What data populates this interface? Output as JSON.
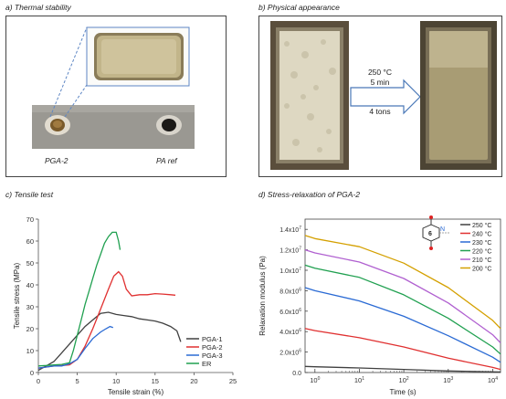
{
  "panels": {
    "a": {
      "title": "a) Thermal stability",
      "label_left": "PGA-2",
      "label_right": "PA ref"
    },
    "b": {
      "title": "b) Physical appearance",
      "temp": "250 °C",
      "time": "5 min",
      "pressure": "4 tons"
    },
    "c": {
      "title": "c) Tensile test"
    },
    "d": {
      "title": "d) Stress-relaxation of PGA-2",
      "molecule_ring": "6",
      "molecule_n": "N"
    }
  },
  "chart_data": [
    {
      "type": "line",
      "xlabel": "Tensile strain (%)",
      "ylabel": "Tensile stress (MPa)",
      "xlim": [
        0,
        25
      ],
      "ylim": [
        0,
        70
      ],
      "xticks": [
        "0",
        "5",
        "10",
        "15",
        "20",
        "25"
      ],
      "yticks": [
        "0",
        "10",
        "20",
        "30",
        "40",
        "50",
        "60",
        "70"
      ],
      "legend_position": "bottom-right",
      "series": [
        {
          "name": "PGA-1",
          "color": "#404040",
          "x": [
            0,
            1,
            2,
            3,
            4,
            5,
            6,
            7,
            8,
            9,
            10,
            11,
            12,
            13,
            14,
            15,
            16,
            17,
            17.8,
            18.3
          ],
          "y": [
            1,
            3,
            5,
            9,
            13,
            17,
            21,
            24,
            27,
            27.5,
            26.5,
            26,
            25.5,
            24.5,
            24,
            23.5,
            22.5,
            21,
            19,
            14
          ]
        },
        {
          "name": "PGA-2",
          "color": "#e03030",
          "x": [
            0,
            1,
            2,
            3,
            4,
            5,
            6,
            7,
            8,
            9,
            9.7,
            10.3,
            10.8,
            11.3,
            12,
            13,
            14,
            15,
            16,
            17,
            17.6
          ],
          "y": [
            2,
            2.5,
            3,
            3.2,
            3.5,
            6,
            12,
            20,
            29,
            38,
            44,
            46,
            44,
            38,
            35,
            35.5,
            35.5,
            36,
            35.8,
            35.5,
            35.3
          ]
        },
        {
          "name": "PGA-3",
          "color": "#2a6ad4",
          "x": [
            0,
            1,
            2,
            3,
            4,
            5,
            6,
            7,
            8,
            8.7,
            9.2,
            9.6
          ],
          "y": [
            2,
            2.5,
            3,
            3,
            4,
            6,
            11,
            15.5,
            18.5,
            20,
            21,
            20.5
          ]
        },
        {
          "name": "ER",
          "color": "#20a050",
          "x": [
            0,
            1,
            2,
            3,
            4,
            4.5,
            5,
            5.5,
            6,
            6.5,
            7,
            7.5,
            8,
            8.5,
            9,
            9.5,
            10,
            10.3,
            10.5
          ],
          "y": [
            3,
            3.2,
            3.5,
            3.7,
            4.5,
            10,
            17,
            24,
            31,
            37,
            43,
            49,
            54,
            59,
            62,
            64,
            64,
            60,
            56
          ]
        }
      ]
    },
    {
      "type": "line",
      "xlabel": "Time (s)",
      "ylabel": "Relaxation modulus (Pa)",
      "xscale": "log",
      "xlim": [
        0.6,
        15000
      ],
      "ylim": [
        0,
        15000000
      ],
      "xticks": [
        {
          "value": 1,
          "base": "10",
          "exp": "0"
        },
        {
          "value": 10,
          "base": "10",
          "exp": "1"
        },
        {
          "value": 100,
          "base": "10",
          "exp": "2"
        },
        {
          "value": 1000,
          "base": "10",
          "exp": "3"
        },
        {
          "value": 10000,
          "base": "10",
          "exp": "4"
        }
      ],
      "yticks": [
        {
          "value": 0,
          "mant": "0.0",
          "exp": ""
        },
        {
          "value": 2000000,
          "mant": "2.0x10",
          "exp": "6"
        },
        {
          "value": 4000000,
          "mant": "4.0x10",
          "exp": "6"
        },
        {
          "value": 6000000,
          "mant": "6.0x10",
          "exp": "6"
        },
        {
          "value": 8000000,
          "mant": "8.0x10",
          "exp": "6"
        },
        {
          "value": 10000000,
          "mant": "1.0x10",
          "exp": "7"
        },
        {
          "value": 12000000,
          "mant": "1.2x10",
          "exp": "7"
        },
        {
          "value": 14000000,
          "mant": "1.4x10",
          "exp": "7"
        }
      ],
      "legend_position": "top-right",
      "series": [
        {
          "name": "250 °C",
          "color": "#404040",
          "x": [
            0.6,
            1,
            10,
            100,
            1000,
            10000,
            15000
          ],
          "y": [
            600000,
            560000,
            450000,
            300000,
            150000,
            60000,
            50000
          ]
        },
        {
          "name": "240 °C",
          "color": "#e03030",
          "x": [
            0.6,
            1,
            10,
            100,
            1000,
            10000,
            15000
          ],
          "y": [
            4300000,
            4100000,
            3400000,
            2500000,
            1400000,
            500000,
            300000
          ]
        },
        {
          "name": "230 °C",
          "color": "#2a6ad4",
          "x": [
            0.6,
            1,
            10,
            100,
            1000,
            10000,
            15000
          ],
          "y": [
            8300000,
            8000000,
            7000000,
            5500000,
            3600000,
            1500000,
            1000000
          ]
        },
        {
          "name": "220 °C",
          "color": "#20a050",
          "x": [
            0.6,
            1,
            10,
            100,
            1000,
            10000,
            15000
          ],
          "y": [
            10500000,
            10200000,
            9300000,
            7600000,
            5300000,
            2500000,
            1800000
          ]
        },
        {
          "name": "210 °C",
          "color": "#b060d0",
          "x": [
            0.6,
            1,
            10,
            100,
            1000,
            10000,
            15000
          ],
          "y": [
            12000000,
            11700000,
            10800000,
            9200000,
            6800000,
            3700000,
            2900000
          ]
        },
        {
          "name": "200 °C",
          "color": "#d4a000",
          "x": [
            0.6,
            1,
            10,
            100,
            1000,
            10000,
            15000
          ],
          "y": [
            13400000,
            13100000,
            12300000,
            10700000,
            8300000,
            5100000,
            4300000
          ]
        }
      ]
    }
  ]
}
